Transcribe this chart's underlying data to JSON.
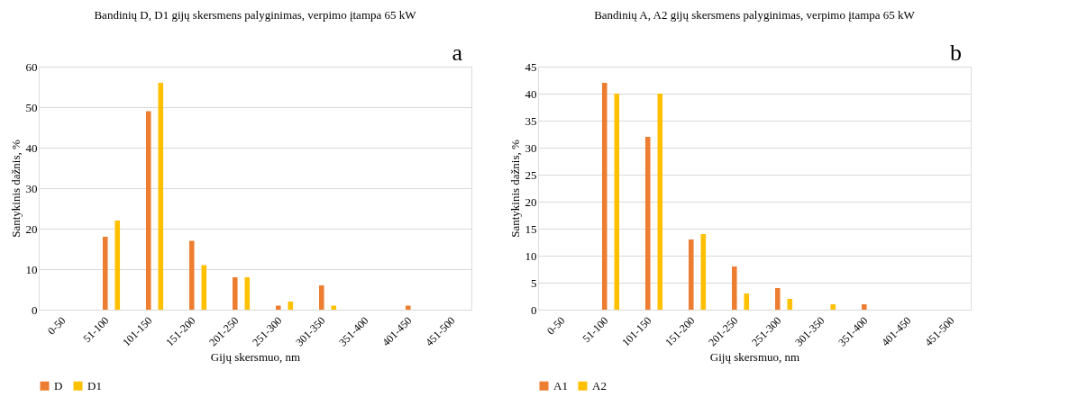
{
  "chart_data": [
    {
      "type": "bar",
      "title": "Bandinių D, D1 gijų skersmens palyginimas, verpimo įtampa 65 kW",
      "xlabel": "Gijų skersmuo, nm",
      "ylabel": "Santykinis dažnis, %",
      "annotations": [
        "a"
      ],
      "categories": [
        "0-50",
        "51-100",
        "101-150",
        "151-200",
        "201-250",
        "251-300",
        "301-350",
        "351-400",
        "401-450",
        "451-500"
      ],
      "series": [
        {
          "name": "D",
          "color": "#ed7d31",
          "values": [
            0,
            18,
            49,
            17,
            8,
            1,
            6,
            0,
            1,
            0
          ]
        },
        {
          "name": "D1",
          "color": "#ffc000",
          "values": [
            0,
            22,
            56,
            11,
            8,
            2,
            1,
            0,
            0,
            0
          ]
        }
      ],
      "ylim": [
        0,
        60
      ],
      "yticks": [
        0,
        10,
        20,
        30,
        40,
        50,
        60
      ],
      "grid": "y",
      "legend": "bottom"
    },
    {
      "type": "bar",
      "title": "Bandinių A, A2 gijų skersmens palyginimas, verpimo įtampa 65 kW",
      "xlabel": "Gijų skersmuo, nm",
      "ylabel": "Santykinis dažnis, %",
      "annotations": [
        "b"
      ],
      "categories": [
        "0-50",
        "51-100",
        "101-150",
        "151-200",
        "201-250",
        "251-300",
        "301-350",
        "351-400",
        "401-450",
        "451-500"
      ],
      "series": [
        {
          "name": "A1",
          "color": "#ed7d31",
          "values": [
            0,
            42,
            32,
            13,
            8,
            4,
            0,
            1,
            0,
            0
          ]
        },
        {
          "name": "A2",
          "color": "#ffc000",
          "values": [
            0,
            40,
            40,
            14,
            3,
            2,
            1,
            0,
            0,
            0
          ]
        }
      ],
      "ylim": [
        0,
        45
      ],
      "yticks": [
        0,
        5,
        10,
        15,
        20,
        25,
        30,
        35,
        40,
        45
      ],
      "grid": "y",
      "legend": "bottom"
    }
  ]
}
